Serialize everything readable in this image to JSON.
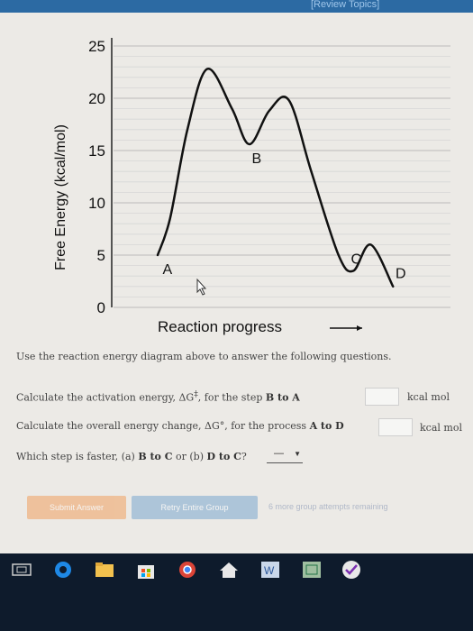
{
  "header": {
    "review_topics": "[Review Topics]"
  },
  "chart_data": {
    "type": "line",
    "ylabel": "Free Energy (kcal/mol)",
    "xlabel": "Reaction progress",
    "ylim": [
      0,
      25
    ],
    "yticks": [
      "25",
      "20",
      "15",
      "10",
      "5",
      "0"
    ],
    "grid": true,
    "series": [
      {
        "values_y": [
          5.0,
          8.5,
          17.0,
          22.8,
          19.0,
          15.6,
          18.8,
          19.8,
          13.0,
          5.0,
          3.5,
          6.0,
          2.0
        ],
        "values_x": [
          0.0,
          0.05,
          0.12,
          0.2,
          0.3,
          0.37,
          0.45,
          0.53,
          0.62,
          0.73,
          0.79,
          0.86,
          0.95
        ]
      }
    ],
    "annotations": [
      {
        "text": "A",
        "x": 0.02,
        "y": 3.2
      },
      {
        "text": "B",
        "x": 0.38,
        "y": 13.8
      },
      {
        "text": "C",
        "x": 0.78,
        "y": 4.2
      },
      {
        "text": "D",
        "x": 0.96,
        "y": 2.8
      }
    ]
  },
  "questions": {
    "intro": "Use the reaction energy diagram above to answer the following questions.",
    "q1_pre": "Calculate the activation energy, ΔG",
    "q1_sup": "‡",
    "q1_mid": ", for the step",
    "q1_step": "B to A",
    "q1_unit": "kcal mol",
    "q2_pre": "Calculate the overall energy change, ΔG°, for the process",
    "q2_step": "A to D",
    "q2_unit": "kcal mol",
    "q3_pre": "Which step is faster,",
    "q3_a": "(a)",
    "q3_a_step": "B to C",
    "q3_or": "or",
    "q3_b": "(b)",
    "q3_b_step": "D to C",
    "q3_q": "?",
    "q3_selected": "—"
  },
  "buttons": {
    "submit": "Submit Answer",
    "retry": "Retry Entire Group",
    "remaining": "6 more group attempts remaining"
  },
  "colors": {
    "topbar": "#2c6aa3",
    "taskbar": "#0e1b2c",
    "paper": "#eceae6"
  }
}
